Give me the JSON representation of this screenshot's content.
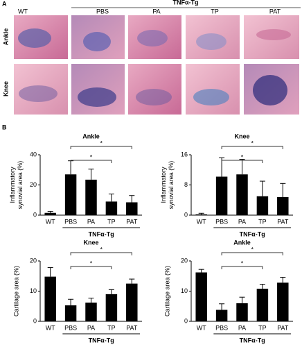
{
  "panel_a": {
    "label": "A",
    "group": "TNFα-Tg",
    "columns": [
      "WT",
      "PBS",
      "PA",
      "TP",
      "PAT"
    ],
    "rows": [
      "Ankle",
      "Knee"
    ]
  },
  "panel_b": {
    "label": "B"
  },
  "chart_data": [
    {
      "type": "bar",
      "title": "Ankle",
      "ylabel": [
        "Inflammatory",
        "synovial area (%)"
      ],
      "group_label": "TNFα-Tg",
      "categories": [
        "WT",
        "PBS",
        "PA",
        "TP",
        "PAT"
      ],
      "values": [
        1.5,
        27,
        23.5,
        9,
        8.5
      ],
      "errors": [
        1,
        9,
        7,
        5,
        4.5
      ],
      "color": "#000000",
      "ylim": [
        0,
        40
      ],
      "yticks": [
        0,
        20,
        40
      ],
      "brackets": [
        {
          "from": "PBS",
          "to": "PAT",
          "label": "*"
        },
        {
          "from": "PBS",
          "to": "TP",
          "label": "*"
        }
      ]
    },
    {
      "type": "bar",
      "title": "Knee",
      "ylabel": [
        "Inflammatory",
        "synovial area (%)"
      ],
      "group_label": "TNFα-Tg",
      "categories": [
        "WT",
        "PBS",
        "PA",
        "TP",
        "PAT"
      ],
      "values": [
        0.2,
        10.2,
        10.8,
        5,
        4.8
      ],
      "errors": [
        0.3,
        5,
        4,
        4,
        3.6
      ],
      "color": "#000000",
      "ylim": [
        0,
        16
      ],
      "yticks": [
        0,
        8,
        16
      ],
      "brackets": [
        {
          "from": "PBS",
          "to": "PAT",
          "label": "*"
        },
        {
          "from": "PBS",
          "to": "TP",
          "label": "*"
        }
      ]
    },
    {
      "type": "bar",
      "title": "Knee",
      "ylabel": [
        "Cartilage area (%)"
      ],
      "group_label": "TNFα-Tg",
      "categories": [
        "WT",
        "PBS",
        "PA",
        "TP",
        "PAT"
      ],
      "values": [
        14.8,
        5.3,
        6.2,
        9,
        12.5
      ],
      "errors": [
        3,
        2,
        1.5,
        1.5,
        1.5
      ],
      "color": "#000000",
      "ylim": [
        0,
        20
      ],
      "yticks": [
        0,
        10,
        20
      ],
      "brackets": [
        {
          "from": "PBS",
          "to": "PAT",
          "label": "*"
        },
        {
          "from": "PBS",
          "to": "TP",
          "label": "*"
        }
      ]
    },
    {
      "type": "bar",
      "title": "Ankle",
      "ylabel": [
        "Cartilage area (%)"
      ],
      "group_label": "TNFα-Tg",
      "categories": [
        "WT",
        "PBS",
        "PA",
        "TP",
        "PAT"
      ],
      "values": [
        16.2,
        3.8,
        6,
        10.8,
        12.8
      ],
      "errors": [
        1,
        2,
        2,
        1.5,
        1.8
      ],
      "color": "#000000",
      "ylim": [
        0,
        20
      ],
      "yticks": [
        0,
        10,
        20
      ],
      "brackets": [
        {
          "from": "PBS",
          "to": "PAT",
          "label": "*"
        },
        {
          "from": "PBS",
          "to": "TP",
          "label": "*"
        }
      ]
    }
  ]
}
